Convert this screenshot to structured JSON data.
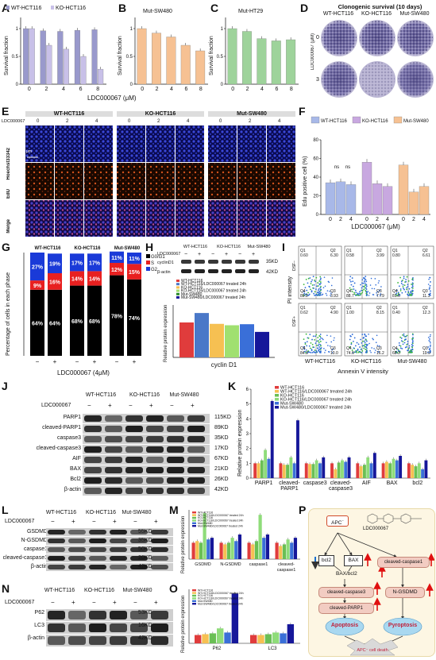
{
  "labels": [
    "A",
    "B",
    "C",
    "D",
    "E",
    "F",
    "G",
    "H",
    "I",
    "J",
    "K",
    "L",
    "M",
    "N",
    "O",
    "P"
  ],
  "panelA": {
    "legend": [
      "WT-HCT116",
      "KO-HCT116"
    ],
    "ylabel": "Survival fraction",
    "xlabel": "LDC000067 (μM)",
    "colors": {
      "wt": "#9999cc",
      "ko": "#c8c0e8"
    }
  },
  "panelB": {
    "title": "Mut-SW480",
    "ylabel": "Survival fraction",
    "color": "#f6c193"
  },
  "panelC": {
    "title": "Mut-HT29",
    "ylabel": "Survival fraction",
    "color": "#9ed39b",
    "ns": "ns"
  },
  "panelD": {
    "title": "Clonogenic survival (10 days)",
    "cols": [
      "WT-HCT116",
      "KO-HCT116",
      "Mut-SW480"
    ],
    "rows": [
      "0",
      "3"
    ],
    "ylabel": "LDC000067 (μM)"
  },
  "panelE": {
    "groups": [
      "WT-HCT116",
      "KO-HCT116",
      "Mut-SW480"
    ],
    "doses": [
      "0",
      "2",
      "4",
      "0",
      "2",
      "4",
      "0",
      "2",
      "4"
    ],
    "rowlabels": [
      "Hoechst33342",
      "EdU",
      "Merge"
    ],
    "drug": "LDC000067",
    "scale": "50 μm"
  },
  "panelF": {
    "legend": [
      "WT-HCT116",
      "KO-HCT116",
      "Mut-SW480"
    ],
    "ylabel": "Edu positive cell (%)",
    "xlabel": "LDC000067 (μM)",
    "ticks": [
      "0",
      "20",
      "40",
      "60",
      "80"
    ],
    "doses": [
      "0",
      "2",
      "4"
    ],
    "ns": "ns"
  },
  "panelG": {
    "groups": [
      "WT-HCT116",
      "KO-HCT116",
      "Mut-SW480"
    ],
    "ylabel": "Percentage of cells in each phase",
    "xlabel": "LDC000067 (4μM)",
    "legend": [
      "G0/G1",
      "S",
      "G2"
    ],
    "ns": "ns",
    "signs": [
      "−",
      "+",
      "−",
      "+",
      "−",
      "+"
    ]
  },
  "panelH": {
    "groups": [
      "WT-HCT116",
      "KO-HCT116",
      "Mut-SW480"
    ],
    "drug": "LDC000067",
    "bands": [
      "cyclinD1",
      "β-actin"
    ],
    "kd": [
      "35KD",
      "42KD"
    ],
    "signs": [
      "−",
      "+",
      "−",
      "+",
      "−",
      "+"
    ],
    "legend": [
      "WT-HCT116",
      "WT-HCT116/LDC000067 treated 24h",
      "KO-HCT116",
      "KO-HCT116/LDC000067 treated 24h",
      "Mut-SW480",
      "Mut-SW480/LDC000067 treated 24h"
    ],
    "ylabel": "Relative protein expression",
    "xlabel": "cyclin D1"
  },
  "panelI": {
    "ylabel": "PI intensity",
    "xlabel": "Annexin V intensity",
    "cols": [
      "WT-HCT116",
      "KO-HCT116",
      "Mut-SW480"
    ],
    "rowlabels": [
      "DSF−",
      "DSF+"
    ],
    "quad": [
      {
        "q1": "0.60",
        "q2": "6.30",
        "q4": "89.2",
        "q3": "3.93"
      },
      {
        "q1": "0.58",
        "q2": "3.99",
        "q4": "88.7",
        "q3": "7.79"
      },
      {
        "q1": "0.80",
        "q2": "6.61",
        "q4": "81.6",
        "q3": "11.1"
      },
      {
        "q1": "0.62",
        "q2": "4.90",
        "q4": "84.3",
        "q3": "10.0"
      },
      {
        "q1": "1.00",
        "q2": "8.15",
        "q4": "74.6",
        "q3": "16.2"
      },
      {
        "q1": "0.40",
        "q2": "12.3",
        "q4": "68.3",
        "q3": "19.0"
      }
    ]
  },
  "panelJ": {
    "groups": [
      "WT-HCT116",
      "KO-HCT116",
      "Mut-SW480"
    ],
    "drug": "LDC000067",
    "signs": [
      "−",
      "+",
      "−",
      "+",
      "−",
      "+"
    ],
    "bands": [
      "PARP1",
      "cleaved-PARP1",
      "caspase3",
      "cleaved-caspase3",
      "AIF",
      "BAX",
      "Bcl2",
      "β-actin"
    ],
    "kd": [
      "115KD",
      "89KD",
      "35KD",
      "17KD",
      "67KD",
      "21KD",
      "26KD",
      "42KD"
    ]
  },
  "panelK": {
    "legend": [
      "WT-HCT116",
      "WT-HCT116/LDC000067 treated 24h",
      "KO-HCT116",
      "KO-HCT116/LDC000067 treated 24h",
      "Mut-SW480",
      "Mut-SW480/LDC000067 treated 24h"
    ],
    "ylabel": "Relative protein expression",
    "categories": [
      "PARP1",
      "cleaved-PARP1",
      "caspase3",
      "cleaved-caspase3",
      "AIF",
      "BAX",
      "bcl2"
    ],
    "ticks": [
      "0",
      "1",
      "2",
      "3",
      "4",
      "5",
      "6"
    ]
  },
  "panelL": {
    "groups": [
      "WT-HCT116",
      "KO-HCT116",
      "Mut-SW480"
    ],
    "drug": "LDC000067",
    "signs": [
      "−",
      "+",
      "−",
      "+",
      "−",
      "+"
    ],
    "bands": [
      "GSDMD",
      "N-GSDMD",
      "caspase1",
      "cleaved-caspase1",
      "β-actin"
    ],
    "kd": [
      "55KD",
      "35KD",
      "50KD",
      "20KD",
      "42KD"
    ]
  },
  "panelM": {
    "ylabel": "Relative protein expression",
    "categories": [
      "GSDMD",
      "N-GSDMD",
      "caspase1",
      "cleaved-caspase1"
    ]
  },
  "panelN": {
    "groups": [
      "WT-HCT116",
      "KO-HCT116",
      "Mut-SW480"
    ],
    "drug": "LDC000067",
    "signs": [
      "−",
      "+",
      "−",
      "+",
      "−",
      "+"
    ],
    "bands": [
      "P62",
      "LC3",
      "β-actin"
    ],
    "kd": [
      "53KD",
      "16KD",
      "42KD"
    ]
  },
  "panelO": {
    "ylabel": "Relative protein expression",
    "categories": [
      "P62",
      "LC3"
    ]
  },
  "panelP": {
    "apc": "APC",
    "drug": "LDC000067",
    "nodes": {
      "bcl2": "bcl2",
      "bax": "BAX",
      "ratio": "BAX/bcl2",
      "casp3": "cleaved-caspase3",
      "parp": "cleaved-PARP1",
      "casp1": "cleaved-caspase1",
      "ngsdmd": "N-GSDMD",
      "apoptosis": "Apoptosis",
      "pyroptosis": "Pyroptosis",
      "death": "APC⁻ cell death"
    }
  },
  "chart_data": [
    {
      "type": "bar",
      "panel": "A",
      "categories": [
        "0",
        "2",
        "4",
        "6",
        "8"
      ],
      "series": [
        {
          "name": "WT-HCT116",
          "values": [
            1.0,
            0.96,
            0.95,
            0.97,
            0.98
          ]
        },
        {
          "name": "KO-HCT116",
          "values": [
            1.0,
            0.7,
            0.63,
            0.5,
            0.27
          ]
        }
      ],
      "ylabel": "Survival fraction",
      "xlabel": "LDC000067 (μM)",
      "ylim": [
        0,
        1.2
      ]
    },
    {
      "type": "bar",
      "panel": "B",
      "title": "Mut-SW480",
      "categories": [
        "0",
        "2",
        "4",
        "6",
        "8"
      ],
      "values": [
        1.0,
        0.92,
        0.85,
        0.7,
        0.6
      ],
      "ylabel": "Survival fraction",
      "ylim": [
        0,
        1.2
      ]
    },
    {
      "type": "bar",
      "panel": "C",
      "title": "Mut-HT29",
      "categories": [
        "0",
        "2",
        "4",
        "6",
        "8"
      ],
      "values": [
        1.0,
        0.95,
        0.82,
        0.78,
        0.8
      ],
      "ylabel": "Survival fraction",
      "ylim": [
        0,
        1.2
      ]
    },
    {
      "type": "bar",
      "panel": "F",
      "categories": [
        "0",
        "2",
        "4"
      ],
      "series": [
        {
          "name": "WT-HCT116",
          "values": [
            34,
            35,
            32
          ]
        },
        {
          "name": "KO-HCT116",
          "values": [
            56,
            33,
            30
          ]
        },
        {
          "name": "Mut-SW480",
          "values": [
            53,
            24,
            30
          ]
        }
      ],
      "ylabel": "Edu positive cell (%)",
      "xlabel": "LDC000067 (μM)",
      "ylim": [
        0,
        80
      ]
    },
    {
      "type": "bar",
      "panel": "G",
      "categories": [
        "WT −",
        "WT +",
        "KO −",
        "KO +",
        "Mut −",
        "Mut +"
      ],
      "series": [
        {
          "name": "G0/G1",
          "values": [
            64,
            64,
            68,
            68,
            78,
            74
          ]
        },
        {
          "name": "S",
          "values": [
            9,
            16,
            14,
            14,
            12,
            15
          ]
        },
        {
          "name": "G2",
          "values": [
            27,
            19,
            17,
            17,
            11,
            11
          ]
        }
      ],
      "ylabel": "Percentage of cells in each phase",
      "xlabel": "LDC000067 (4μM)"
    },
    {
      "type": "bar",
      "panel": "H",
      "categories": [
        "cyclin D1"
      ],
      "series": [
        {
          "name": "WT-HCT116",
          "values": [
            1.0
          ]
        },
        {
          "name": "WT-HCT116/LDC000067 treated 24h",
          "values": [
            1.27
          ]
        },
        {
          "name": "KO-HCT116",
          "values": [
            0.96
          ]
        },
        {
          "name": "KO-HCT116/LDC000067 treated 24h",
          "values": [
            0.92
          ]
        },
        {
          "name": "Mut-SW480",
          "values": [
            0.95
          ]
        },
        {
          "name": "Mut-SW480/LDC000067 treated 24h",
          "values": [
            0.73
          ]
        }
      ],
      "ylabel": "Relative protein expression",
      "xlabel": "cyclin D1"
    },
    {
      "type": "bar",
      "panel": "K",
      "categories": [
        "PARP1",
        "cleaved-PARP1",
        "caspase3",
        "cleaved-caspase3",
        "AIF",
        "BAX",
        "bcl2"
      ],
      "series": [
        {
          "name": "WT-HCT116",
          "values": [
            1.0,
            1.0,
            1.0,
            1.0,
            1.0,
            1.0,
            1.0
          ]
        },
        {
          "name": "WT-HCT116/LDC000067 treated 24h",
          "values": [
            1.0,
            0.9,
            0.95,
            0.6,
            0.8,
            1.1,
            0.9
          ]
        },
        {
          "name": "KO-HCT116",
          "values": [
            1.2,
            0.9,
            0.95,
            1.05,
            0.9,
            1.0,
            0.8
          ]
        },
        {
          "name": "KO-HCT116/LDC000067 treated 24h",
          "values": [
            1.9,
            1.4,
            1.2,
            1.2,
            1.4,
            1.3,
            1.0
          ]
        },
        {
          "name": "Mut-SW480",
          "values": [
            1.3,
            1.0,
            1.0,
            1.1,
            1.0,
            1.2,
            0.6
          ]
        },
        {
          "name": "Mut-SW480/LDC000067 treated 24h",
          "values": [
            5.2,
            3.9,
            1.4,
            1.4,
            1.7,
            1.5,
            1.2
          ]
        }
      ],
      "ylabel": "Relative protein expression",
      "ylim": [
        0,
        6
      ]
    },
    {
      "type": "bar",
      "panel": "M",
      "categories": [
        "GSDMD",
        "N-GSDMD",
        "caspase1",
        "cleaved-caspase1"
      ],
      "series": [
        {
          "name": "WT-HCT116",
          "values": [
            1.0,
            1.0,
            1.0,
            1.0
          ]
        },
        {
          "name": "WT-HCT116/LDC000067 treated 24h",
          "values": [
            1.1,
            0.9,
            0.9,
            0.8
          ]
        },
        {
          "name": "KO-HCT116",
          "values": [
            1.0,
            1.0,
            1.1,
            0.9
          ]
        },
        {
          "name": "KO-HCT116/LDC000067 treated 24h",
          "values": [
            2.8,
            1.3,
            2.7,
            1.2
          ]
        },
        {
          "name": "Mut-SW480",
          "values": [
            1.2,
            1.1,
            1.3,
            1.0
          ]
        },
        {
          "name": "Mut-SW480/LDC000067 treated 24h",
          "values": [
            1.3,
            1.5,
            1.5,
            1.3
          ]
        }
      ],
      "ylabel": "Relative protein expression"
    },
    {
      "type": "bar",
      "panel": "O",
      "categories": [
        "P62",
        "LC3"
      ],
      "series": [
        {
          "name": "WT-HCT116",
          "values": [
            1.0,
            1.0
          ]
        },
        {
          "name": "WT-HCT116/LDC000067 treated 24h",
          "values": [
            1.1,
            1.0
          ]
        },
        {
          "name": "KO-HCT116",
          "values": [
            1.2,
            1.1
          ]
        },
        {
          "name": "KO-HCT116/LDC000067 treated 24h",
          "values": [
            1.8,
            1.3
          ]
        },
        {
          "name": "Mut-SW480",
          "values": [
            1.3,
            1.2
          ]
        },
        {
          "name": "Mut-SW480/LDC000067 treated 24h",
          "values": [
            6.0,
            2.3
          ]
        }
      ],
      "ylabel": "Relative protein expression"
    }
  ]
}
